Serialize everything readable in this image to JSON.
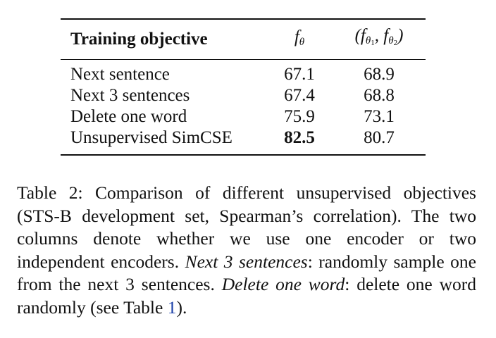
{
  "table": {
    "headers": {
      "objective": "Training objective",
      "single_theta": "θ",
      "pair_theta1": "θ",
      "pair_theta1_sub": "1",
      "pair_theta2": "θ",
      "pair_theta2_sub": "2"
    },
    "rows": [
      {
        "objective": "Next sentence",
        "single": "67.1",
        "pair": "68.9"
      },
      {
        "objective": "Next 3 sentences",
        "single": "67.4",
        "pair": "68.8"
      },
      {
        "objective": "Delete one word",
        "single": "75.9",
        "pair": "73.1"
      },
      {
        "objective": "Unsupervised SimCSE",
        "single": "82.5",
        "pair": "80.7"
      }
    ]
  },
  "caption": {
    "part1": "Table 2: Comparison of different unsupervised objectives (STS-B development set, Spearman’s correlation). The two columns denote whether we use one encoder or two independent encoders. ",
    "term1": "Next 3 sentences",
    "part2": ": randomly sample one from the next 3 sentences. ",
    "term2": "Delete one word",
    "part3": ": delete one word randomly (see Table ",
    "ref": "1",
    "part4": ")."
  }
}
